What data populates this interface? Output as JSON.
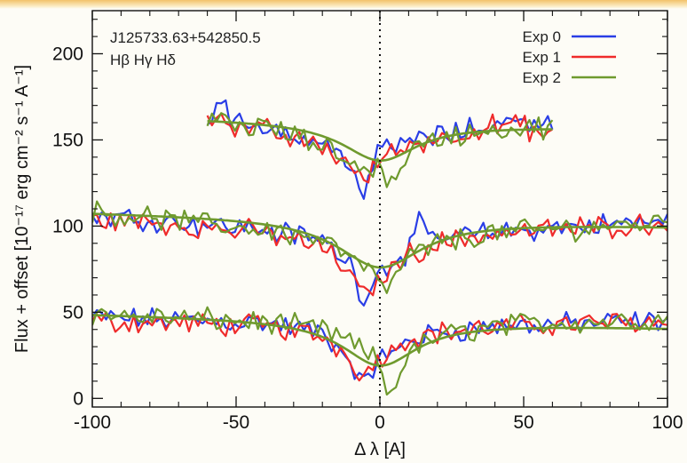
{
  "chart_data": {
    "type": "line",
    "title": "",
    "xlabel": "Δ λ [A]",
    "ylabel": "Flux + offset [10⁻¹⁷ erg cm⁻² s⁻¹ A⁻¹]",
    "xlim": [
      -100,
      100
    ],
    "ylim": [
      -5,
      225
    ],
    "x_ticks": [
      -100,
      -50,
      0,
      50,
      100
    ],
    "y_ticks": [
      0,
      50,
      100,
      150,
      200
    ],
    "grid": false,
    "legend_position": "top-right",
    "annotations": [
      "J125733.63+542850.5",
      "Hβ Hγ Hδ"
    ],
    "colors": {
      "Exp 0": "#2a3ee6",
      "Exp 1": "#ef2b2b",
      "Exp 2": "#6f9a2e",
      "model": "#6f9a2e",
      "zero_line": "#111111"
    },
    "reference_line": {
      "x": 0,
      "style": "dotted"
    },
    "profiles": [
      {
        "line": "Hβ",
        "offset": 0,
        "x_range": [
          -100,
          100
        ],
        "continuum": 45,
        "model_depth": 26,
        "model_width": 16,
        "series": [
          {
            "name": "Exp 0",
            "points": [
              [
                -100,
                47
              ],
              [
                -80,
                46
              ],
              [
                -60,
                45
              ],
              [
                -40,
                44
              ],
              [
                -20,
                38
              ],
              [
                -10,
                22
              ],
              [
                -6,
                6
              ],
              [
                -3,
                14
              ],
              [
                0,
                28
              ],
              [
                3,
                20
              ],
              [
                6,
                30
              ],
              [
                10,
                34
              ],
              [
                20,
                38
              ],
              [
                40,
                42
              ],
              [
                60,
                43
              ],
              [
                80,
                44
              ],
              [
                100,
                45
              ]
            ]
          },
          {
            "name": "Exp 1",
            "points": [
              [
                -100,
                45
              ],
              [
                -80,
                44
              ],
              [
                -60,
                43
              ],
              [
                -40,
                42
              ],
              [
                -20,
                36
              ],
              [
                -10,
                24
              ],
              [
                -6,
                12
              ],
              [
                -3,
                18
              ],
              [
                0,
                26
              ],
              [
                3,
                24
              ],
              [
                6,
                32
              ],
              [
                10,
                35
              ],
              [
                20,
                38
              ],
              [
                40,
                41
              ],
              [
                60,
                43
              ],
              [
                80,
                44
              ],
              [
                100,
                45
              ]
            ]
          },
          {
            "name": "Exp 2",
            "points": [
              [
                -100,
                49
              ],
              [
                -80,
                47
              ],
              [
                -60,
                46
              ],
              [
                -40,
                44
              ],
              [
                -20,
                40
              ],
              [
                -10,
                32
              ],
              [
                -6,
                28
              ],
              [
                -3,
                24
              ],
              [
                0,
                20
              ],
              [
                3,
                0
              ],
              [
                6,
                12
              ],
              [
                10,
                26
              ],
              [
                20,
                36
              ],
              [
                40,
                42
              ],
              [
                60,
                44
              ],
              [
                80,
                45
              ],
              [
                100,
                46
              ]
            ]
          }
        ]
      },
      {
        "line": "Hγ",
        "offset": 50,
        "x_range": [
          -100,
          100
        ],
        "continuum": 104,
        "model_depth": 28,
        "model_width": 18,
        "series": [
          {
            "name": "Exp 0",
            "points": [
              [
                -100,
                106
              ],
              [
                -80,
                104
              ],
              [
                -60,
                101
              ],
              [
                -40,
                98
              ],
              [
                -20,
                92
              ],
              [
                -10,
                78
              ],
              [
                -6,
                58
              ],
              [
                -3,
                66
              ],
              [
                0,
                74
              ],
              [
                5,
                80
              ],
              [
                10,
                86
              ],
              [
                13,
                104
              ],
              [
                16,
                92
              ],
              [
                25,
                94
              ],
              [
                40,
                96
              ],
              [
                60,
                99
              ],
              [
                80,
                101
              ],
              [
                100,
                103
              ]
            ]
          },
          {
            "name": "Exp 1",
            "points": [
              [
                -100,
                104
              ],
              [
                -80,
                102
              ],
              [
                -60,
                99
              ],
              [
                -40,
                96
              ],
              [
                -20,
                88
              ],
              [
                -10,
                72
              ],
              [
                -6,
                58
              ],
              [
                -3,
                64
              ],
              [
                0,
                70
              ],
              [
                5,
                76
              ],
              [
                10,
                84
              ],
              [
                20,
                90
              ],
              [
                40,
                96
              ],
              [
                60,
                98
              ],
              [
                80,
                100
              ],
              [
                100,
                102
              ]
            ]
          },
          {
            "name": "Exp 2",
            "points": [
              [
                -100,
                108
              ],
              [
                -80,
                105
              ],
              [
                -60,
                101
              ],
              [
                -40,
                98
              ],
              [
                -20,
                92
              ],
              [
                -10,
                82
              ],
              [
                -6,
                74
              ],
              [
                -3,
                72
              ],
              [
                0,
                70
              ],
              [
                3,
                62
              ],
              [
                6,
                72
              ],
              [
                10,
                82
              ],
              [
                20,
                90
              ],
              [
                40,
                96
              ],
              [
                60,
                98
              ],
              [
                80,
                100
              ],
              [
                100,
                103
              ]
            ]
          }
        ]
      },
      {
        "line": "Hδ",
        "offset": 110,
        "x_range": [
          -60,
          60
        ],
        "continuum": 160,
        "model_depth": 22,
        "model_width": 16,
        "series": [
          {
            "name": "Exp 0",
            "points": [
              [
                -60,
                162
              ],
              [
                -55,
                175
              ],
              [
                -50,
                158
              ],
              [
                -40,
                160
              ],
              [
                -30,
                152
              ],
              [
                -20,
                148
              ],
              [
                -10,
                138
              ],
              [
                -6,
                116
              ],
              [
                -3,
                130
              ],
              [
                0,
                145
              ],
              [
                5,
                146
              ],
              [
                10,
                150
              ],
              [
                20,
                152
              ],
              [
                30,
                155
              ],
              [
                40,
                160
              ],
              [
                50,
                160
              ],
              [
                60,
                163
              ]
            ]
          },
          {
            "name": "Exp 1",
            "points": [
              [
                -60,
                158
              ],
              [
                -55,
                168
              ],
              [
                -50,
                155
              ],
              [
                -40,
                156
              ],
              [
                -30,
                150
              ],
              [
                -20,
                146
              ],
              [
                -10,
                136
              ],
              [
                -6,
                124
              ],
              [
                -3,
                132
              ],
              [
                0,
                140
              ],
              [
                5,
                142
              ],
              [
                10,
                148
              ],
              [
                20,
                150
              ],
              [
                30,
                155
              ],
              [
                40,
                158
              ],
              [
                50,
                158
              ],
              [
                60,
                150
              ]
            ]
          },
          {
            "name": "Exp 2",
            "points": [
              [
                -60,
                160
              ],
              [
                -55,
                165
              ],
              [
                -50,
                157
              ],
              [
                -40,
                158
              ],
              [
                -30,
                152
              ],
              [
                -20,
                146
              ],
              [
                -10,
                138
              ],
              [
                -6,
                132
              ],
              [
                -3,
                134
              ],
              [
                0,
                138
              ],
              [
                3,
                120
              ],
              [
                6,
                132
              ],
              [
                10,
                144
              ],
              [
                20,
                150
              ],
              [
                30,
                154
              ],
              [
                40,
                156
              ],
              [
                50,
                156
              ],
              [
                60,
                158
              ]
            ]
          }
        ]
      }
    ]
  }
}
